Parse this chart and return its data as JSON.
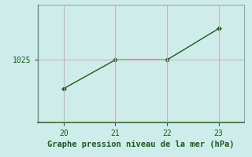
{
  "x": [
    20,
    21,
    22,
    23
  ],
  "y": [
    1017.2,
    1025.0,
    1025.0,
    1033.5
  ],
  "line_color": "#1a5c1a",
  "bg_color": "#ceecea",
  "grid_color": "#d0a8b8",
  "spine_color": "#6a8a6a",
  "xlabel": "Graphe pression niveau de la mer (hPa)",
  "ytick_values": [
    1025
  ],
  "ytick_labels": [
    "1025"
  ],
  "xlim": [
    19.5,
    23.5
  ],
  "ylim": [
    1008,
    1040
  ],
  "xticks": [
    20,
    21,
    22,
    23
  ],
  "tick_fontsize": 7,
  "xlabel_fontsize": 7.5
}
